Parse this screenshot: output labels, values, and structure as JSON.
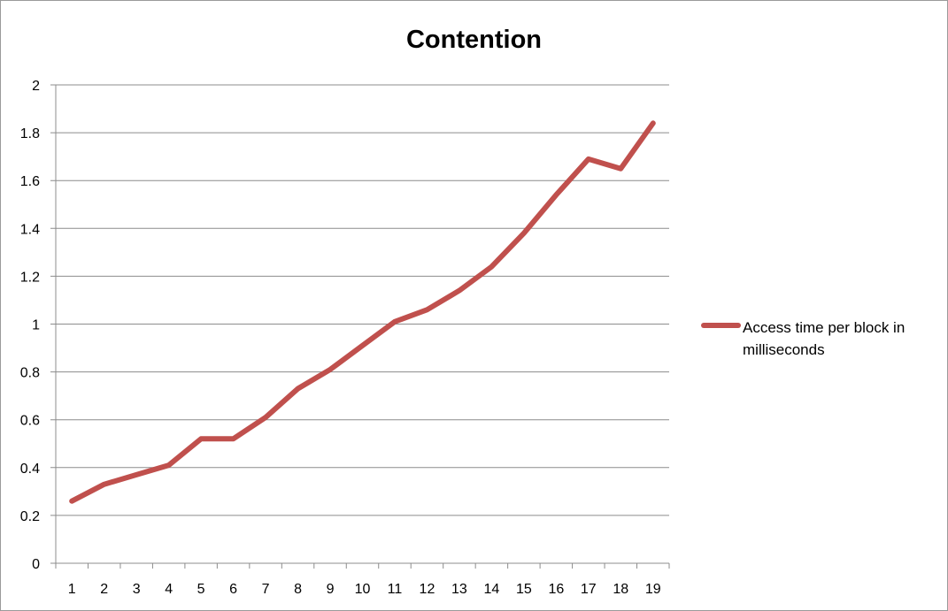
{
  "chart_data": {
    "type": "line",
    "title": "Contention",
    "xlabel": "",
    "ylabel": "",
    "categories": [
      "1",
      "2",
      "3",
      "4",
      "5",
      "6",
      "7",
      "8",
      "9",
      "10",
      "11",
      "12",
      "13",
      "14",
      "15",
      "16",
      "17",
      "18",
      "19"
    ],
    "y_ticks": [
      "0",
      "0.2",
      "0.4",
      "0.6",
      "0.8",
      "1",
      "1.2",
      "1.4",
      "1.6",
      "1.8",
      "2"
    ],
    "ylim": [
      0,
      2
    ],
    "grid": true,
    "legend_position": "right",
    "series": [
      {
        "name": "Access time per block in milliseconds",
        "color": "#c0504d",
        "values": [
          0.26,
          0.33,
          0.37,
          0.41,
          0.52,
          0.52,
          0.61,
          0.73,
          0.81,
          0.91,
          1.01,
          1.06,
          1.14,
          1.24,
          1.38,
          1.54,
          1.69,
          1.65,
          1.84
        ]
      }
    ]
  }
}
